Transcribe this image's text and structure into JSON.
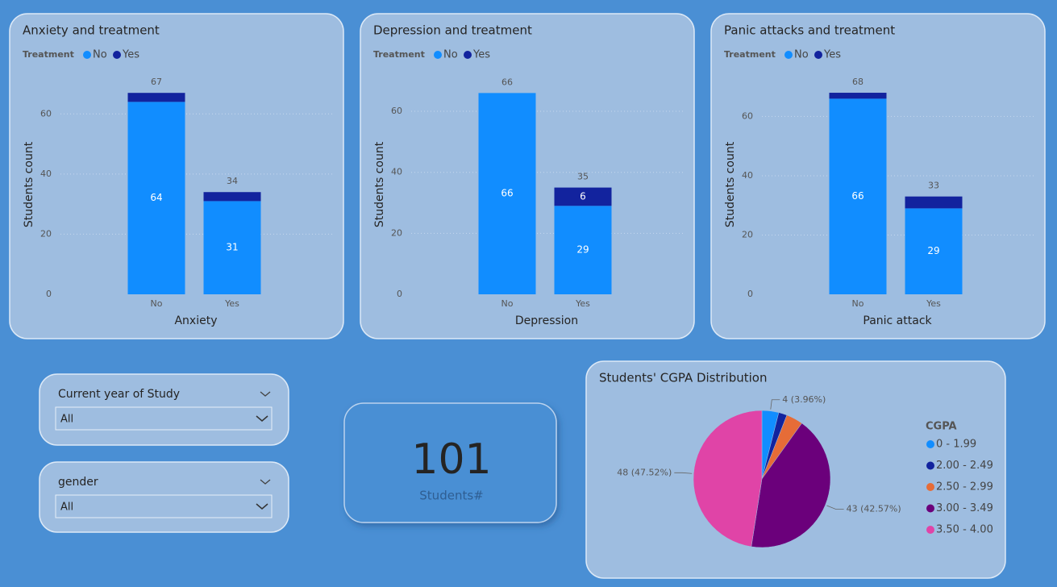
{
  "chart_data": [
    {
      "type": "bar",
      "title": "Anxiety and treatment",
      "legend_title": "Treatment",
      "categories": [
        "No",
        "Yes"
      ],
      "series": [
        {
          "name": "No",
          "color": "#118dff",
          "values": [
            64,
            31
          ]
        },
        {
          "name": "Yes",
          "color": "#12239e",
          "values": [
            3,
            3
          ]
        }
      ],
      "totals": [
        67,
        34
      ],
      "xlabel": "Anxiety",
      "ylabel": "Students count",
      "ylim": [
        0,
        70
      ],
      "yticks": [
        0,
        20,
        40,
        60
      ],
      "grid": true
    },
    {
      "type": "bar",
      "title": "Depression and treatment",
      "legend_title": "Treatment",
      "categories": [
        "No",
        "Yes"
      ],
      "series": [
        {
          "name": "No",
          "color": "#118dff",
          "values": [
            66,
            29
          ]
        },
        {
          "name": "Yes",
          "color": "#12239e",
          "values": [
            0,
            6
          ]
        }
      ],
      "totals": [
        66,
        35
      ],
      "xlabel": "Depression",
      "ylabel": "Students count",
      "ylim": [
        0,
        69
      ],
      "yticks": [
        0,
        20,
        40,
        60
      ],
      "grid": true
    },
    {
      "type": "bar",
      "title": "Panic attacks and treatment",
      "legend_title": "Treatment",
      "categories": [
        "No",
        "Yes"
      ],
      "series": [
        {
          "name": "No",
          "color": "#118dff",
          "values": [
            66,
            29
          ]
        },
        {
          "name": "Yes",
          "color": "#12239e",
          "values": [
            2,
            4
          ]
        }
      ],
      "totals": [
        68,
        33
      ],
      "xlabel": "Panic attack",
      "ylabel": "Students count",
      "ylim": [
        0,
        71
      ],
      "yticks": [
        0,
        20,
        40,
        60
      ],
      "grid": true
    },
    {
      "type": "pie",
      "title": "Students' CGPA Distribution",
      "legend_title": "CGPA",
      "categories": [
        "0 - 1.99",
        "2.00 - 2.49",
        "2.50 - 2.99",
        "3.00 - 3.49",
        "3.50 - 4.00"
      ],
      "values": [
        4,
        2,
        4,
        43,
        48
      ],
      "value_labels": [
        "4 (3.96%)",
        null,
        null,
        "43 (42.57%)",
        "48 (47.52%)"
      ],
      "colors": [
        "#118dff",
        "#12239e",
        "#e66c37",
        "#6b007b",
        "#e044a7"
      ]
    }
  ],
  "slicers": [
    {
      "label": "Current year of Study",
      "value": "All"
    },
    {
      "label": "gender",
      "value": "All"
    }
  ],
  "card": {
    "value": "101",
    "label": "Students#"
  }
}
